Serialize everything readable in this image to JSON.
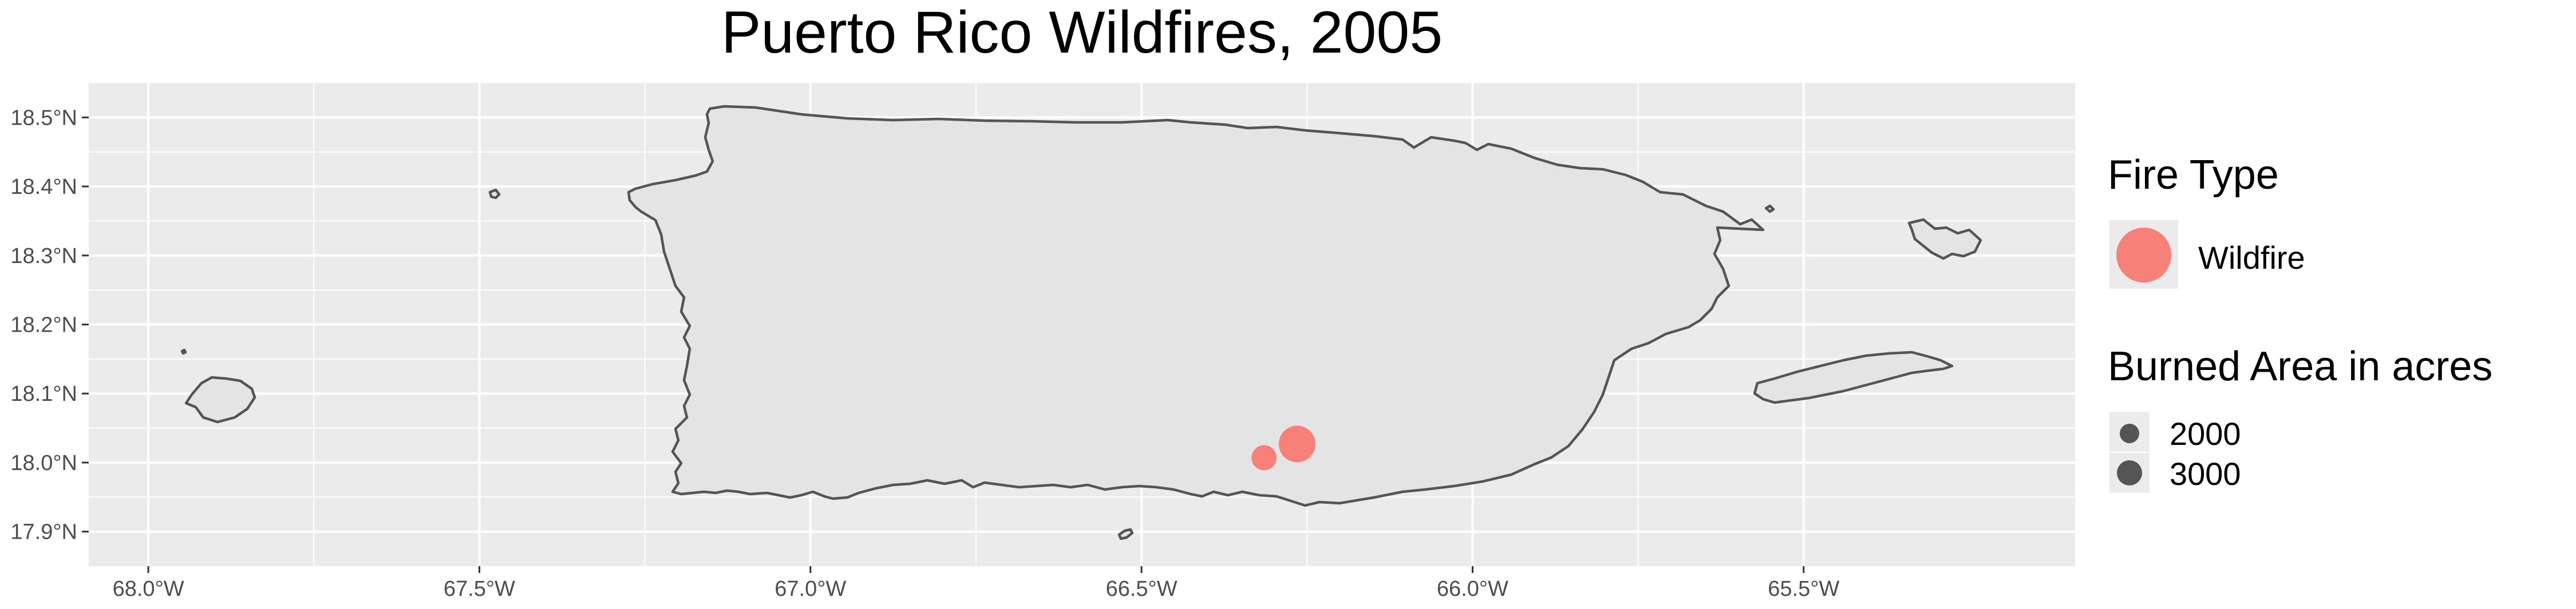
{
  "title": "Puerto Rico Wildfires, 2005",
  "axes": {
    "x_ticks": [
      "68.0°W",
      "67.5°W",
      "67.0°W",
      "66.5°W",
      "66.0°W",
      "65.5°W"
    ],
    "y_ticks": [
      "18.5°N",
      "18.4°N",
      "18.3°N",
      "18.2°N",
      "18.1°N",
      "18.0°N",
      "17.9°N"
    ],
    "x_values": [
      -68.0,
      -67.5,
      -67.0,
      -66.5,
      -66.0,
      -65.5
    ],
    "y_values": [
      18.5,
      18.4,
      18.3,
      18.2,
      18.1,
      18.0,
      17.9
    ],
    "xlim": [
      -68.09,
      -65.09
    ],
    "ylim": [
      17.85,
      18.55
    ],
    "grid": true
  },
  "legend": {
    "placement": "right",
    "fire_type_title": "Fire Type",
    "fire_type_items": [
      {
        "label": "Wildfire",
        "color": "#f8766d"
      }
    ],
    "area_title": "Burned Area in acres",
    "area_items": [
      {
        "label": "2000",
        "value": 2000
      },
      {
        "label": "3000",
        "value": 3000
      }
    ]
  },
  "colors": {
    "panel": "#ebebeb",
    "land": "#e4e4e4",
    "coast": "#555555",
    "grid": "#ffffff",
    "fire": "#f8766d"
  },
  "chart_data": {
    "type": "scatter",
    "title": "Puerto Rico Wildfires, 2005",
    "xlabel": "",
    "ylabel": "",
    "series": [
      {
        "name": "Wildfire",
        "points": [
          {
            "lon": -66.265,
            "lat": 18.027,
            "acres": 3200
          },
          {
            "lon": -66.315,
            "lat": 18.007,
            "acres": 1200
          }
        ]
      }
    ]
  }
}
